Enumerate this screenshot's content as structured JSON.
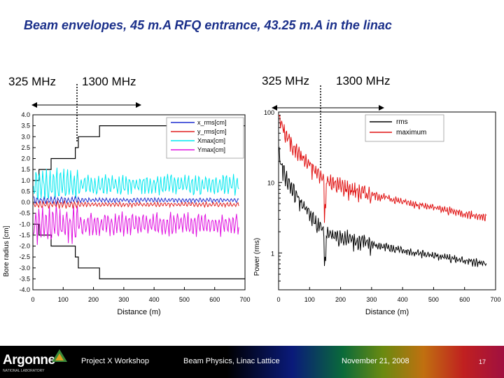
{
  "slide": {
    "title": "Beam envelopes, 45 m.A RFQ entrance, 43.25 m.A in the linac",
    "freq_labels": [
      "325 MHz",
      "1300 MHz",
      "325 MHz",
      "1300 MHz"
    ]
  },
  "footer": {
    "logo": "Argonne",
    "logo_sub": "NATIONAL LABORATORY",
    "workshop": "Project X Workshop",
    "topic": "Beam Physics, Linac Lattice",
    "date": "November 21, 2008",
    "page": "17"
  },
  "colors": {
    "title": "#1a2f8a",
    "x_rms": "#1f2fd0",
    "y_rms": "#e02020",
    "xmax": "#00e8f0",
    "ymax": "#e010e0",
    "rms": "#000000",
    "maximum": "#e01010"
  },
  "chart_data": [
    {
      "type": "line",
      "xlabel": "Distance (m)",
      "ylabel": "Bore radius [cm]",
      "xlim": [
        0,
        700
      ],
      "ylim": [
        -4.0,
        4.0
      ],
      "x_ticks": [
        "0",
        "100",
        "200",
        "300",
        "400",
        "500",
        "600",
        "700"
      ],
      "y_ticks": [
        "4.0",
        "3.5",
        "3.0",
        "2.5",
        "2.0",
        "1.5",
        "1.0",
        "0.5",
        "0.0",
        "-0.5",
        "-1.0",
        "-1.5",
        "-2.0",
        "-2.5",
        "-3.0",
        "-3.5",
        "-4.0"
      ],
      "legend": [
        "x_rms[cm]",
        "y_rms[cm]",
        "Xmax[cm]",
        "Ymax[cm]"
      ],
      "aperture_steps": [
        [
          0,
          1.0
        ],
        [
          20,
          1.0
        ],
        [
          20,
          1.5
        ],
        [
          60,
          1.5
        ],
        [
          60,
          2.0
        ],
        [
          140,
          2.0
        ],
        [
          140,
          2.5
        ],
        [
          150,
          2.5
        ],
        [
          150,
          3.0
        ],
        [
          220,
          3.0
        ],
        [
          220,
          3.5
        ],
        [
          700,
          3.5
        ]
      ],
      "series": [
        {
          "name": "x_rms[cm]",
          "color": "#1f2fd0",
          "base": 0.1,
          "amp": 0.08
        },
        {
          "name": "y_rms[cm]",
          "color": "#e02020",
          "base": -0.1,
          "amp": 0.08
        },
        {
          "name": "Xmax[cm]",
          "color": "#00e8f0",
          "base": 0.8,
          "amp": 0.35
        },
        {
          "name": "Ymax[cm]",
          "color": "#e010e0",
          "base": -1.0,
          "amp": 0.4
        }
      ]
    },
    {
      "type": "line",
      "yscale": "log",
      "xlabel": "Distance (m)",
      "ylabel": "Power (rms)",
      "xlim": [
        0,
        700
      ],
      "ylim": [
        0.3,
        100
      ],
      "x_ticks": [
        "0",
        "100",
        "200",
        "300",
        "400",
        "500",
        "600",
        "700"
      ],
      "y_ticks": [
        "100",
        "10",
        "1"
      ],
      "legend": [
        "rms",
        "maximum"
      ],
      "series": [
        {
          "name": "rms",
          "color": "#000000",
          "start": 30,
          "mid": 2.2,
          "end": 0.7
        },
        {
          "name": "maximum",
          "color": "#e01010",
          "start": 100,
          "mid": 12,
          "end": 3.2
        }
      ]
    }
  ]
}
